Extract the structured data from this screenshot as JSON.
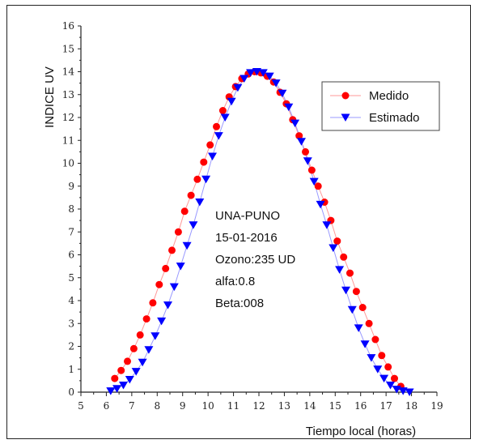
{
  "chart_data": {
    "type": "scatter",
    "title": "",
    "xlabel": "Tiempo local (horas)",
    "ylabel": "INDICE  UV",
    "xlim": [
      5,
      19
    ],
    "ylim": [
      0,
      16
    ],
    "xticks": [
      5,
      6,
      7,
      8,
      9,
      10,
      11,
      12,
      13,
      14,
      15,
      16,
      17,
      18,
      19
    ],
    "yticks": [
      0,
      1,
      2,
      3,
      4,
      5,
      6,
      7,
      8,
      9,
      10,
      11,
      12,
      13,
      14,
      15,
      16
    ],
    "legend_position": "top-right",
    "annotations": [
      "UNA-PUNO",
      "15-01-2016",
      "Ozono:235 UD",
      "alfa:0.8",
      "Beta:008"
    ],
    "series": [
      {
        "name": "Medido",
        "color": "#ff0000",
        "marker": "circle",
        "x": [
          6.33,
          6.58,
          6.83,
          7.08,
          7.33,
          7.58,
          7.83,
          8.08,
          8.33,
          8.58,
          8.83,
          9.08,
          9.33,
          9.58,
          9.83,
          10.08,
          10.33,
          10.58,
          10.83,
          11.08,
          11.33,
          11.58,
          11.83,
          12.08,
          12.33,
          12.58,
          12.83,
          13.08,
          13.33,
          13.58,
          13.83,
          14.08,
          14.33,
          14.58,
          14.83,
          15.08,
          15.33,
          15.58,
          15.83,
          16.08,
          16.33,
          16.58,
          16.83,
          17.08,
          17.33,
          17.58
        ],
        "y": [
          0.6,
          0.95,
          1.35,
          1.9,
          2.5,
          3.2,
          3.9,
          4.7,
          5.4,
          6.2,
          7.0,
          7.9,
          8.6,
          9.3,
          10.05,
          10.8,
          11.6,
          12.3,
          12.9,
          13.35,
          13.7,
          13.9,
          14.0,
          13.95,
          13.8,
          13.55,
          13.1,
          12.6,
          11.9,
          11.2,
          10.5,
          9.7,
          9.0,
          8.3,
          7.5,
          6.6,
          5.9,
          5.2,
          4.4,
          3.7,
          3.0,
          2.3,
          1.6,
          1.1,
          0.6,
          0.25
        ]
      },
      {
        "name": "Estimado",
        "color": "#0000ff",
        "marker": "triangle-down",
        "x": [
          6.17,
          6.42,
          6.67,
          6.92,
          7.17,
          7.42,
          7.67,
          7.92,
          8.17,
          8.42,
          8.67,
          8.92,
          9.17,
          9.42,
          9.67,
          9.92,
          10.17,
          10.42,
          10.67,
          10.92,
          11.17,
          11.42,
          11.67,
          11.92,
          12.17,
          12.42,
          12.67,
          12.92,
          13.17,
          13.42,
          13.67,
          13.92,
          14.17,
          14.42,
          14.67,
          14.92,
          15.17,
          15.42,
          15.67,
          15.92,
          16.17,
          16.42,
          16.67,
          16.92,
          17.17,
          17.42,
          17.67,
          17.92
        ],
        "y": [
          0.05,
          0.15,
          0.3,
          0.55,
          0.9,
          1.3,
          1.85,
          2.45,
          3.1,
          3.8,
          4.6,
          5.5,
          6.4,
          7.3,
          8.3,
          9.3,
          10.3,
          11.2,
          12.0,
          12.7,
          13.3,
          13.7,
          13.95,
          14.0,
          13.95,
          13.8,
          13.5,
          13.05,
          12.45,
          11.75,
          10.95,
          10.1,
          9.2,
          8.2,
          7.3,
          6.3,
          5.35,
          4.45,
          3.6,
          2.8,
          2.1,
          1.5,
          1.0,
          0.6,
          0.3,
          0.12,
          0.05,
          0.0
        ]
      }
    ]
  }
}
